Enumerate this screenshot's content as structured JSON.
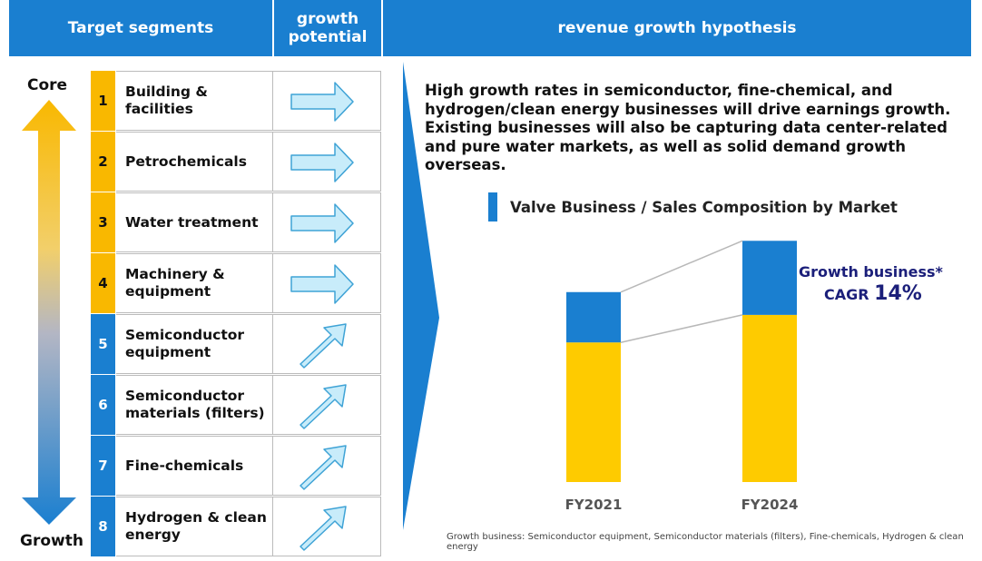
{
  "header": {
    "segments": "Target segments",
    "potential": "growth potential",
    "hypothesis": "revenue growth hypothesis"
  },
  "axis": {
    "top": "Core",
    "bottom": "Growth"
  },
  "segments": [
    {
      "num": "1",
      "name": "Building & facilities",
      "group": "core",
      "arrow": "right"
    },
    {
      "num": "2",
      "name": "Petrochemicals",
      "group": "core",
      "arrow": "right"
    },
    {
      "num": "3",
      "name": "Water treatment",
      "group": "core",
      "arrow": "right"
    },
    {
      "num": "4",
      "name": "Machinery  & equipment",
      "group": "core",
      "arrow": "right"
    },
    {
      "num": "5",
      "name": "Semiconductor equipment",
      "group": "growth",
      "arrow": "up-right"
    },
    {
      "num": "6",
      "name": "Semiconductor materials (filters)",
      "group": "growth",
      "arrow": "up-right"
    },
    {
      "num": "7",
      "name": "Fine-chemicals",
      "group": "growth",
      "arrow": "up-right"
    },
    {
      "num": "8",
      "name": "Hydrogen & clean energy",
      "group": "growth",
      "arrow": "up-right"
    }
  ],
  "intro": "High growth rates in semiconductor, fine-chemical, and hydrogen/clean energy businesses will drive earnings growth. Existing businesses will also be capturing data center-related and pure water markets, as well as solid demand growth overseas.",
  "growth_label": {
    "line1": "Growth business*",
    "cagr": "CAGR",
    "value": "14%"
  },
  "footnote": "Growth business: Semiconductor equipment, Semiconductor materials (filters), Fine-chemicals, Hydrogen & clean energy",
  "colors": {
    "header": "#1a7fd0",
    "core": "#f9b800",
    "growth": "#1a7fd0",
    "bar_core": "#fecb00",
    "bar_growth": "#1a7fd0",
    "label": "#1b1f7a"
  },
  "chart_data": {
    "type": "bar",
    "stacked": true,
    "title": "Valve Business / Sales Composition by Market",
    "categories": [
      "FY2021",
      "FY2024"
    ],
    "series": [
      {
        "values": [
          147,
          176
        ]
      },
      {
        "values": [
          53,
          78
        ]
      }
    ],
    "ylim": [
      0,
      260
    ],
    "grid": false,
    "connector_lines": true,
    "colors": [
      "#fecb00",
      "#1a7fd0"
    ]
  }
}
